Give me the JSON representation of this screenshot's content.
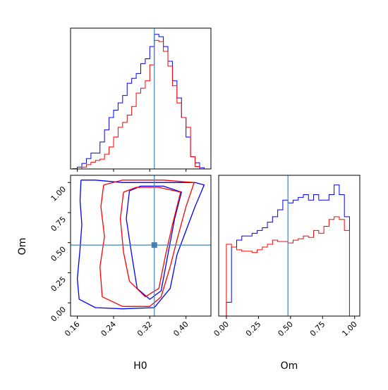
{
  "chart_data": [
    {
      "type": "histogram",
      "parameter": "H0",
      "xlim": [
        0.145,
        0.455
      ],
      "reference_value": 0.33,
      "bin_edges": [
        0.15,
        0.16,
        0.17,
        0.18,
        0.19,
        0.2,
        0.21,
        0.22,
        0.23,
        0.24,
        0.25,
        0.26,
        0.27,
        0.28,
        0.29,
        0.3,
        0.31,
        0.32,
        0.33,
        0.34,
        0.35,
        0.36,
        0.37,
        0.38,
        0.39,
        0.4,
        0.41,
        0.42,
        0.43,
        0.44,
        0.45
      ],
      "series": [
        {
          "color": "#0000ff",
          "values": [
            0.2,
            1.5,
            4.5,
            8.5,
            13,
            13,
            22,
            32,
            42,
            48,
            54,
            60,
            70,
            74,
            78,
            86,
            90,
            100,
            110,
            108,
            100,
            88,
            72,
            58,
            42,
            26,
            10,
            5,
            1,
            0
          ]
        },
        {
          "color": "#ff0000",
          "values": [
            0,
            0,
            1.5,
            3.5,
            5.5,
            7,
            8,
            12,
            18,
            26,
            34,
            38,
            44,
            51,
            62,
            66,
            72,
            85,
            105,
            104,
            96,
            84,
            68,
            54,
            42,
            34,
            10,
            2,
            0,
            0
          ]
        }
      ]
    },
    {
      "type": "contour",
      "xlabel": "H0",
      "ylabel": "Om",
      "xlim": [
        0.145,
        0.455
      ],
      "ylim": [
        -0.11,
        1.06
      ],
      "xticks": [
        "0.16",
        "0.24",
        "0.32",
        "0.40"
      ],
      "yticks": [
        "0.00",
        "0.25",
        "0.50",
        "0.75",
        "1.00"
      ],
      "reference_point": [
        0.33,
        0.48
      ],
      "series": [
        {
          "color": "#0000ff",
          "levels": [
            [
              [
                0.168,
                1.02
              ],
              [
                0.166,
                0.85
              ],
              [
                0.17,
                0.65
              ],
              [
                0.166,
                0.45
              ],
              [
                0.16,
                0.2
              ],
              [
                0.164,
                0.03
              ],
              [
                0.2,
                -0.04
              ],
              [
                0.26,
                -0.05
              ],
              [
                0.33,
                -0.04
              ],
              [
                0.365,
                0.12
              ],
              [
                0.38,
                0.4
              ],
              [
                0.4,
                0.6
              ],
              [
                0.42,
                0.8
              ],
              [
                0.44,
                0.98
              ],
              [
                0.42,
                1.0
              ],
              [
                0.34,
                1.0
              ],
              [
                0.26,
                1.0
              ],
              [
                0.2,
                1.02
              ],
              [
                0.168,
                1.02
              ]
            ],
            [
              [
                0.275,
                0.93
              ],
              [
                0.268,
                0.7
              ],
              [
                0.28,
                0.4
              ],
              [
                0.292,
                0.12
              ],
              [
                0.32,
                0.03
              ],
              [
                0.345,
                0.1
              ],
              [
                0.36,
                0.4
              ],
              [
                0.375,
                0.7
              ],
              [
                0.39,
                0.92
              ],
              [
                0.35,
                0.97
              ],
              [
                0.3,
                0.97
              ],
              [
                0.275,
                0.93
              ]
            ]
          ]
        },
        {
          "color": "#ff0000",
          "levels": [
            [
              [
                0.218,
                0.98
              ],
              [
                0.212,
                0.8
              ],
              [
                0.22,
                0.55
              ],
              [
                0.21,
                0.3
              ],
              [
                0.215,
                0.05
              ],
              [
                0.26,
                -0.03
              ],
              [
                0.32,
                -0.03
              ],
              [
                0.345,
                0.05
              ],
              [
                0.365,
                0.3
              ],
              [
                0.382,
                0.55
              ],
              [
                0.4,
                0.8
              ],
              [
                0.418,
                1.0
              ],
              [
                0.35,
                1.02
              ],
              [
                0.26,
                1.02
              ],
              [
                0.218,
                0.98
              ]
            ],
            [
              [
                0.262,
                0.92
              ],
              [
                0.255,
                0.7
              ],
              [
                0.262,
                0.42
              ],
              [
                0.275,
                0.18
              ],
              [
                0.31,
                0.05
              ],
              [
                0.34,
                0.12
              ],
              [
                0.355,
                0.4
              ],
              [
                0.37,
                0.65
              ],
              [
                0.388,
                0.92
              ],
              [
                0.34,
                0.96
              ],
              [
                0.29,
                0.96
              ],
              [
                0.262,
                0.92
              ]
            ]
          ]
        }
      ]
    },
    {
      "type": "histogram",
      "xlabel": "Om",
      "xlim": [
        -0.06,
        1.04
      ],
      "xticks": [
        "0.00",
        "0.25",
        "0.50",
        "0.75",
        "1.00"
      ],
      "reference_value": 0.48,
      "bin_edges": [
        -0.04,
        0.0,
        0.04,
        0.08,
        0.12,
        0.16,
        0.2,
        0.24,
        0.28,
        0.32,
        0.36,
        0.4,
        0.44,
        0.48,
        0.52,
        0.56,
        0.6,
        0.64,
        0.68,
        0.72,
        0.76,
        0.8,
        0.84,
        0.88,
        0.92,
        0.96,
        1.0
      ],
      "series": [
        {
          "color": "#0000ff",
          "values": [
            0,
            10,
            50,
            55,
            58,
            58,
            60,
            62,
            64,
            68,
            72,
            77,
            84,
            82,
            84,
            86,
            88,
            84,
            88,
            84,
            84,
            88,
            95,
            88,
            72,
            0
          ]
        },
        {
          "color": "#ff0000",
          "values": [
            0,
            52,
            50,
            48,
            47,
            47,
            46,
            48,
            50,
            52,
            55,
            54,
            54,
            53,
            55,
            56,
            58,
            57,
            62,
            60,
            65,
            70,
            72,
            70,
            62,
            0
          ]
        }
      ]
    }
  ]
}
